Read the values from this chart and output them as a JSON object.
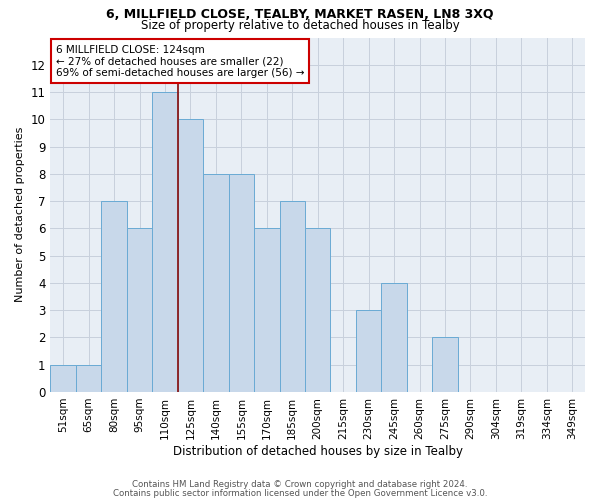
{
  "title1": "6, MILLFIELD CLOSE, TEALBY, MARKET RASEN, LN8 3XQ",
  "title2": "Size of property relative to detached houses in Tealby",
  "xlabel": "Distribution of detached houses by size in Tealby",
  "ylabel": "Number of detached properties",
  "categories": [
    "51sqm",
    "65sqm",
    "80sqm",
    "95sqm",
    "110sqm",
    "125sqm",
    "140sqm",
    "155sqm",
    "170sqm",
    "185sqm",
    "200sqm",
    "215sqm",
    "230sqm",
    "245sqm",
    "260sqm",
    "275sqm",
    "290sqm",
    "304sqm",
    "319sqm",
    "334sqm",
    "349sqm"
  ],
  "values": [
    1,
    1,
    7,
    6,
    11,
    10,
    8,
    8,
    6,
    7,
    6,
    0,
    3,
    4,
    0,
    2,
    0,
    0,
    0,
    0,
    0
  ],
  "bar_color": "#c8d8ea",
  "bar_edge_color": "#6aaad4",
  "marker_color": "#8b1a1a",
  "annotation_text": "6 MILLFIELD CLOSE: 124sqm\n← 27% of detached houses are smaller (22)\n69% of semi-detached houses are larger (56) →",
  "annotation_box_color": "white",
  "annotation_box_edge_color": "#cc0000",
  "ylim": [
    0,
    13
  ],
  "yticks": [
    0,
    1,
    2,
    3,
    4,
    5,
    6,
    7,
    8,
    9,
    10,
    11,
    12
  ],
  "footer1": "Contains HM Land Registry data © Crown copyright and database right 2024.",
  "footer2": "Contains public sector information licensed under the Open Government Licence v3.0.",
  "grid_color": "#c8d0dc",
  "bg_color": "#e8eef5",
  "title1_fontsize": 9,
  "title2_fontsize": 8.5,
  "ylabel_fontsize": 8,
  "xlabel_fontsize": 8.5,
  "tick_fontsize": 7.5,
  "ann_fontsize": 7.5,
  "footer_fontsize": 6.2,
  "marker_bin_index": 4
}
